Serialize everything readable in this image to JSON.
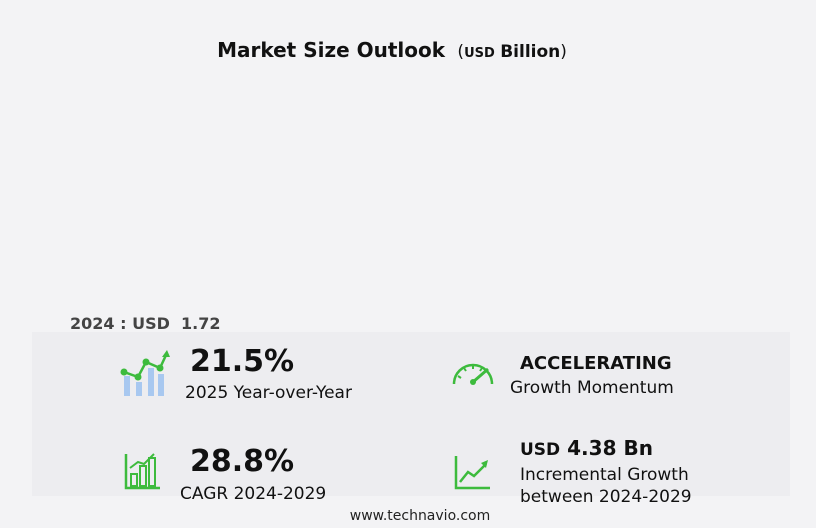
{
  "header": {
    "title": "Market Size Outlook",
    "unit_prefix": "USD",
    "unit": "Billion"
  },
  "base": {
    "label": "2024 : USD",
    "value": "1.72"
  },
  "metrics": {
    "yoy": {
      "value": "21.5%",
      "label": "2025 Year-over-Year",
      "icon": "growth-chart-icon"
    },
    "momentum": {
      "value": "ACCELERATING",
      "label": "Growth Momentum",
      "icon": "speedometer-icon"
    },
    "cagr": {
      "value": "28.8%",
      "label": "CAGR 2024-2029",
      "icon": "bar-chart-icon"
    },
    "incremental": {
      "value_prefix": "USD",
      "value": "4.38 Bn",
      "label_line1": "Incremental Growth",
      "label_line2": "between 2024-2029",
      "icon": "trend-line-icon"
    }
  },
  "footer": {
    "url": "www.technavio.com"
  },
  "colors": {
    "accent_green": "#3dbb3d",
    "bar_blue": "#a8c8f0",
    "panel_bg": "#ededf0"
  },
  "chart_data": {
    "type": "bar",
    "title": "Market Size Outlook",
    "unit": "USD Billion",
    "categories": [
      "2024"
    ],
    "values": [
      1.72
    ]
  }
}
